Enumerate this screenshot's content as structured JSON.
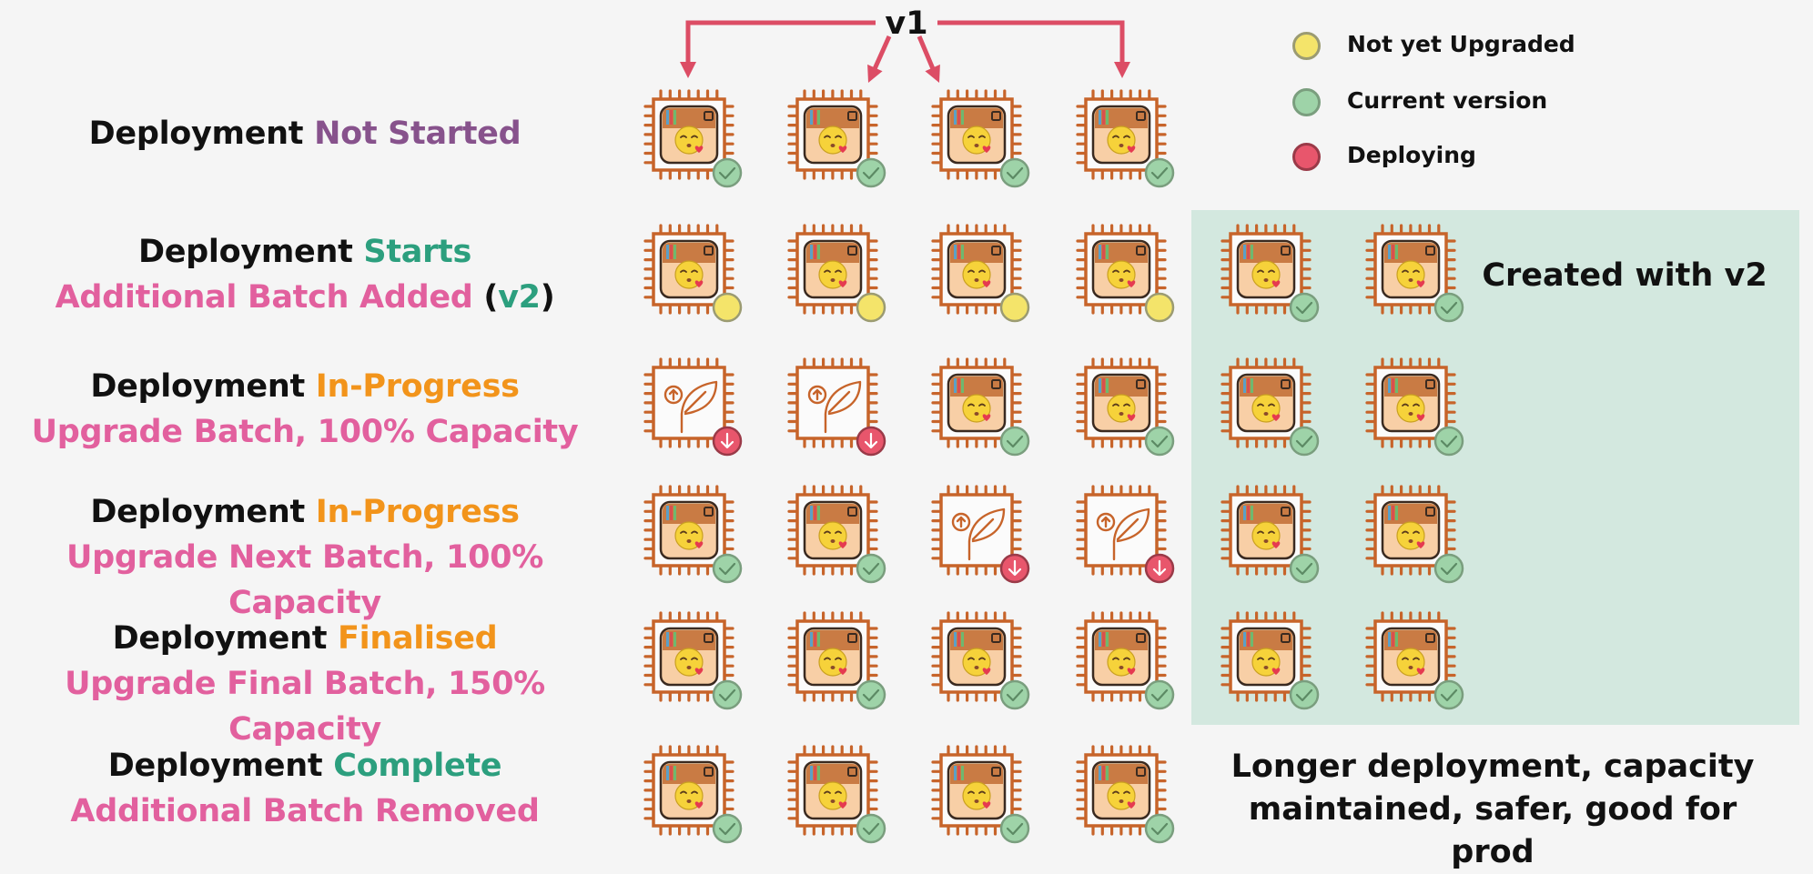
{
  "top_label": "v1",
  "rows": [
    {
      "parts": [
        {
          "text": "Deployment ",
          "tone": "black"
        },
        {
          "text": "Not Started",
          "tone": "purple"
        }
      ],
      "line2": []
    },
    {
      "parts": [
        {
          "text": "Deployment ",
          "tone": "black"
        },
        {
          "text": "Starts",
          "tone": "green"
        }
      ],
      "line2": [
        {
          "text": "Additional Batch Added",
          "tone": "pink"
        },
        {
          "text": " (",
          "tone": "black"
        },
        {
          "text": "v2",
          "tone": "green"
        },
        {
          "text": ")",
          "tone": "black"
        }
      ]
    },
    {
      "parts": [
        {
          "text": "Deployment ",
          "tone": "black"
        },
        {
          "text": "In-Progress",
          "tone": "orange"
        }
      ],
      "line2": [
        {
          "text": "Upgrade Batch, 100% Capacity",
          "tone": "pink"
        }
      ]
    },
    {
      "parts": [
        {
          "text": "Deployment ",
          "tone": "black"
        },
        {
          "text": "In-Progress",
          "tone": "orange"
        }
      ],
      "line2": [
        {
          "text": "Upgrade Next Batch, 100% Capacity",
          "tone": "pink"
        }
      ]
    },
    {
      "parts": [
        {
          "text": "Deployment ",
          "tone": "black"
        },
        {
          "text": "Finalised",
          "tone": "orange"
        }
      ],
      "line2": [
        {
          "text": "Upgrade Final Batch, 150% Capacity",
          "tone": "pink"
        }
      ]
    },
    {
      "parts": [
        {
          "text": "Deployment ",
          "tone": "black"
        },
        {
          "text": "Complete",
          "tone": "green"
        }
      ],
      "line2": [
        {
          "text": "Additional Batch Removed",
          "tone": "pink"
        }
      ]
    }
  ],
  "grid": [
    [
      "current",
      "current",
      "current",
      "current"
    ],
    [
      "not-upgraded",
      "not-upgraded",
      "not-upgraded",
      "not-upgraded",
      "current",
      "current"
    ],
    [
      "deploying",
      "deploying",
      "current",
      "current",
      "current",
      "current"
    ],
    [
      "current",
      "current",
      "deploying",
      "deploying",
      "current",
      "current"
    ],
    [
      "current",
      "current",
      "current",
      "current",
      "current",
      "current"
    ],
    [
      "current",
      "current",
      "current",
      "current"
    ]
  ],
  "legend": [
    {
      "label": "Not yet Upgraded",
      "status": "not-upgraded"
    },
    {
      "label": "Current version",
      "status": "current"
    },
    {
      "label": "Deploying",
      "status": "deploying"
    }
  ],
  "v2_caption": "Created with v2",
  "note": "Longer deployment, capacity maintained, safer, good for prod",
  "colors": {
    "arrow": "#dc4d65",
    "chip": "#c7642a",
    "panel": "#d3e8df",
    "not_upgraded": "#f4e46a",
    "current": "#9ed3a8",
    "deploying": "#e8566c"
  },
  "icons": {
    "server": "chip-app-icon",
    "upgrade": "chip-upgrade-leaf-icon",
    "not_upgraded": "yellow-dot-icon",
    "current": "green-check-badge-icon",
    "deploying": "red-down-arrow-badge-icon"
  }
}
